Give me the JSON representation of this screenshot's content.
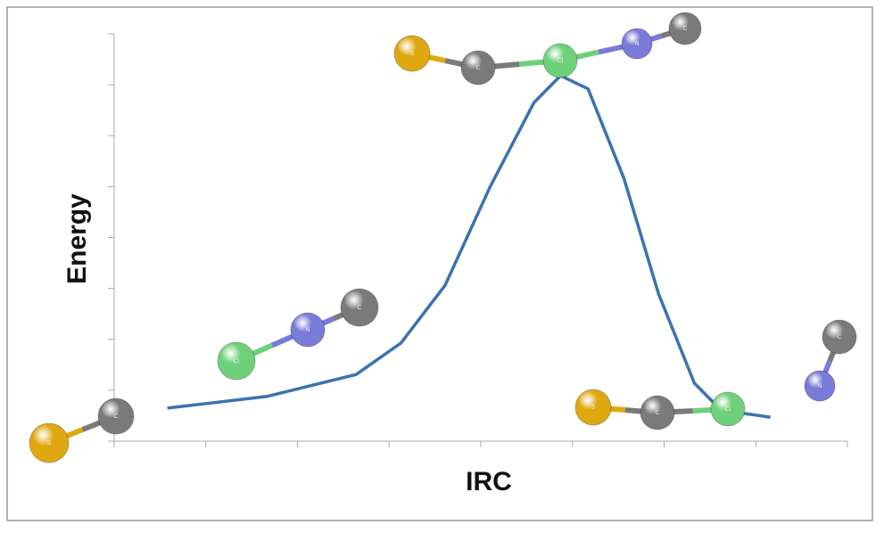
{
  "chart_data": {
    "type": "line",
    "xlabel": "IRC",
    "ylabel": "Energy",
    "x": [
      0.58,
      1.67,
      2.64,
      3.13,
      3.61,
      4.1,
      4.58,
      4.87,
      5.17,
      5.56,
      5.94,
      6.33,
      6.62,
      7.16
    ],
    "series": [
      {
        "color": "#3b72b0",
        "values": [
          0.65,
          0.88,
          1.31,
          1.93,
          3.06,
          4.99,
          6.65,
          7.18,
          6.92,
          5.17,
          2.89,
          1.14,
          0.61,
          0.47
        ]
      }
    ],
    "xlim": [
      0,
      8
    ],
    "ylim": [
      0,
      8
    ],
    "xticks": [
      0,
      1,
      2,
      3,
      4,
      5,
      6,
      7,
      8
    ],
    "yticks": [
      0,
      1,
      2,
      3,
      4,
      5,
      6,
      7,
      8
    ],
    "molecules": [
      {
        "atoms": [
          {
            "label": "S",
            "color": "#e0a810"
          },
          {
            "label": "C",
            "color": "#7a7a7a"
          }
        ]
      },
      {
        "atoms": [
          {
            "label": "Cl",
            "color": "#6fd07a"
          },
          {
            "label": "N",
            "color": "#7a7ad8"
          },
          {
            "label": "C",
            "color": "#7a7a7a"
          }
        ]
      },
      {
        "atoms": [
          {
            "label": "S",
            "color": "#e0a810"
          },
          {
            "label": "C",
            "color": "#7a7a7a"
          },
          {
            "label": "Cl",
            "color": "#6fd07a"
          },
          {
            "label": "N",
            "color": "#7a7ad8"
          },
          {
            "label": "C",
            "color": "#7a7a7a"
          }
        ]
      },
      {
        "atoms": [
          {
            "label": "S",
            "color": "#e0a810"
          },
          {
            "label": "C",
            "color": "#7a7a7a"
          },
          {
            "label": "Cl",
            "color": "#6fd07a"
          }
        ]
      },
      {
        "atoms": [
          {
            "label": "C",
            "color": "#7a7a7a"
          },
          {
            "label": "N",
            "color": "#7a7ad8"
          }
        ]
      }
    ]
  }
}
